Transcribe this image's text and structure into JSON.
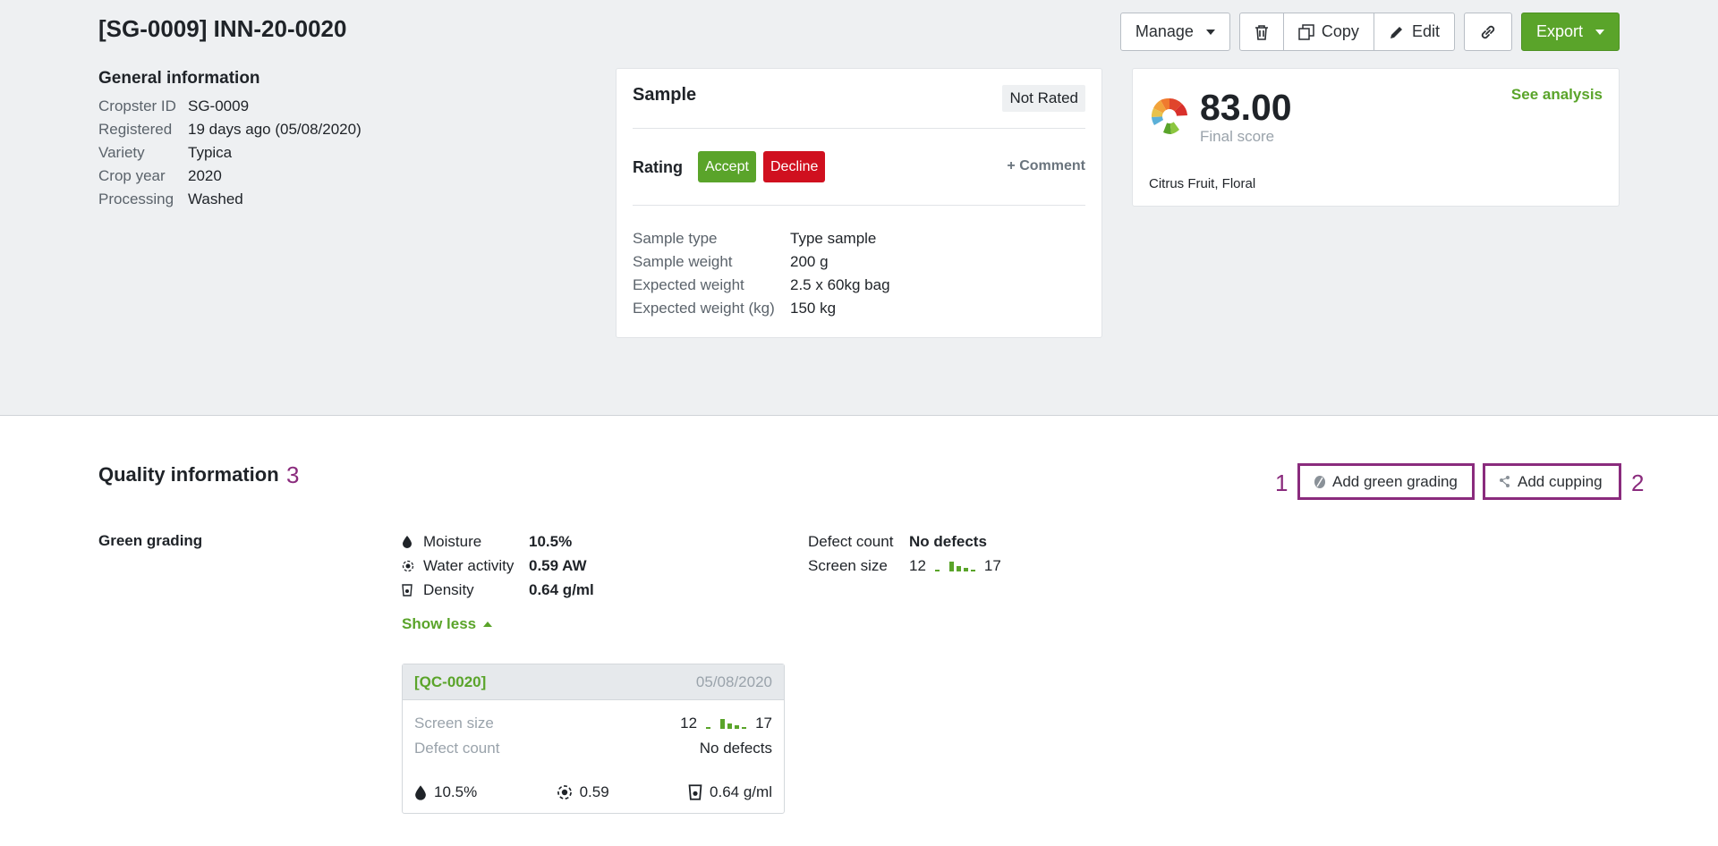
{
  "header": {
    "title": "[SG-0009] INN-20-0020",
    "toolbar": {
      "manage_label": "Manage",
      "copy_label": "Copy",
      "edit_label": "Edit",
      "export_label": "Export",
      "delete_icon": "trash-icon",
      "link_icon": "link-icon"
    }
  },
  "general": {
    "title": "General information",
    "rows": [
      {
        "label": "Cropster ID",
        "value": "SG-0009"
      },
      {
        "label": "Registered",
        "value": "19 days ago (05/08/2020)"
      },
      {
        "label": "Variety",
        "value": "Typica"
      },
      {
        "label": "Crop year",
        "value": "2020"
      },
      {
        "label": "Processing",
        "value": "Washed"
      }
    ]
  },
  "sample": {
    "title": "Sample",
    "status": "Not Rated",
    "rating_label": "Rating",
    "accept_label": "Accept",
    "decline_label": "Decline",
    "comment_label": "+ Comment",
    "rows": [
      {
        "label": "Sample type",
        "value": "Type sample"
      },
      {
        "label": "Sample weight",
        "value": "200 g"
      },
      {
        "label": "Expected weight",
        "value": "2.5 x 60kg bag"
      },
      {
        "label": "Expected weight (kg)",
        "value": "150 kg"
      }
    ]
  },
  "score": {
    "value": "83.00",
    "label": "Final score",
    "link": "See analysis",
    "flavors": "Citrus Fruit, Floral"
  },
  "quality": {
    "title": "Quality information",
    "annotation_3": "3",
    "annotation_1": "1",
    "annotation_2": "2",
    "add_green_grading": "Add green grading",
    "add_cupping": "Add cupping",
    "green_grading_label": "Green grading",
    "metrics": [
      {
        "label": "Moisture",
        "value": "10.5%",
        "icon": "drop-icon"
      },
      {
        "label": "Water activity",
        "value": "0.59 AW",
        "icon": "water-activity-icon"
      },
      {
        "label": "Density",
        "value": "0.64 g/ml",
        "icon": "density-icon"
      }
    ],
    "show_less": "Show less",
    "defect_count_label": "Defect count",
    "defect_count_value": "No defects",
    "screen_size_label": "Screen size",
    "screen_min": "12",
    "screen_max": "17",
    "qc": {
      "id": "[QC-0020]",
      "date": "05/08/2020",
      "screen_size_label": "Screen size",
      "screen_min": "12",
      "screen_max": "17",
      "defect_count_label": "Defect count",
      "defect_count_value": "No defects",
      "moisture": "10.5%",
      "water_activity": "0.59",
      "density": "0.64 g/ml"
    }
  },
  "colors": {
    "accent_green": "#5aa42a",
    "decline_red": "#d0101f",
    "annotation_purple": "#8a2b7d"
  }
}
